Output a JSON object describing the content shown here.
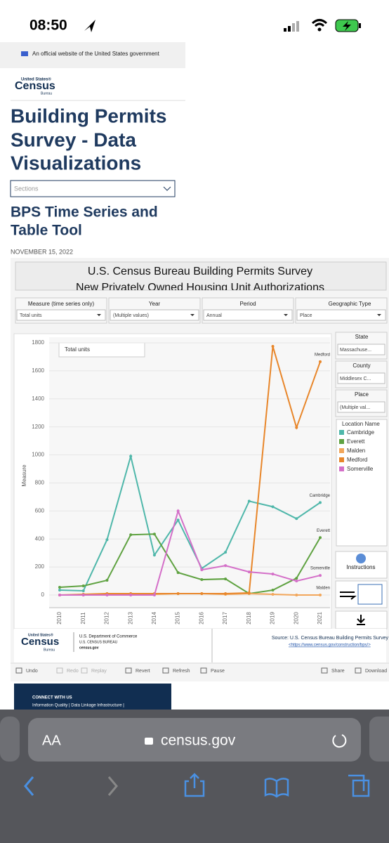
{
  "status_bar": {
    "time": "08:50"
  },
  "gov_banner": "An official website of the United States government",
  "logo": {
    "top": "United States®",
    "main": "Census",
    "bottom": "Bureau"
  },
  "page_title": [
    "Building Permits",
    "Survey - Data",
    "Visualizations"
  ],
  "sections_select": "Sections",
  "subtitle": [
    "BPS Time Series and",
    "Table Tool"
  ],
  "date": "NOVEMBER 15, 2022",
  "dashboard": {
    "title": "U.S. Census Bureau Building Permits Survey",
    "title_line2": "New Privately Owned Housing Unit Authorizations",
    "filters": [
      {
        "label": "Measure (time series only)",
        "value": "Total units"
      },
      {
        "label": "Year",
        "value": "(Multiple values)"
      },
      {
        "label": "Period",
        "value": "Annual"
      },
      {
        "label": "Geographic Type",
        "value": "Place"
      }
    ],
    "side_filters": [
      {
        "label": "State",
        "value": "Massachuse..."
      },
      {
        "label": "County",
        "value": "Middlesex C..."
      },
      {
        "label": "Place",
        "value": "(Multiple val..."
      }
    ],
    "legend_title": "Location Name",
    "instructions": "Instructions",
    "chart": {
      "type": "line",
      "measure_label": "Total units",
      "y_label": "Measure",
      "categories": [
        "2010",
        "2011",
        "2012",
        "2013",
        "2014",
        "2015",
        "2016",
        "2017",
        "2018",
        "2019",
        "2020",
        "2021"
      ],
      "ylim": [
        0,
        1800
      ],
      "yticks": [
        0,
        200,
        400,
        600,
        800,
        1000,
        1200,
        1400,
        1600,
        1800
      ],
      "series": [
        {
          "name": "Cambridge",
          "color": "#4fb7aa",
          "values": [
            35,
            30,
            395,
            990,
            285,
            535,
            190,
            305,
            670,
            630,
            545,
            660
          ]
        },
        {
          "name": "Everett",
          "color": "#5fa241",
          "values": [
            55,
            65,
            105,
            430,
            435,
            160,
            110,
            115,
            10,
            35,
            120,
            410
          ]
        },
        {
          "name": "Malden",
          "color": "#f2a65a",
          "values": [
            0,
            0,
            5,
            5,
            5,
            10,
            10,
            5,
            10,
            5,
            0,
            0
          ]
        },
        {
          "name": "Medford",
          "color": "#e8862a",
          "values": [
            0,
            5,
            10,
            10,
            10,
            10,
            10,
            10,
            15,
            1775,
            1195,
            1665
          ]
        },
        {
          "name": "Somerville",
          "color": "#d46fc8",
          "values": [
            0,
            0,
            0,
            0,
            0,
            600,
            180,
            210,
            165,
            150,
            100,
            140
          ]
        }
      ]
    },
    "footer": {
      "dept": "U.S. Department of Commerce",
      "bureau": "U.S. CENSUS BUREAU",
      "site": "census.gov",
      "source": "Source: U.S. Census Bureau Building Permits Survey",
      "link": "<https://www.census.gov/construction/bps/>"
    },
    "toolbar": [
      "Undo",
      "Redo",
      "Replay",
      "Revert",
      "Refresh",
      "Pause",
      "Share",
      "Download"
    ]
  },
  "connect": {
    "title": "CONNECT WITH US",
    "links": "Information Quality | Data Linkage Infrastructure |"
  },
  "browser": {
    "aa": "AA",
    "url": "census.gov"
  }
}
